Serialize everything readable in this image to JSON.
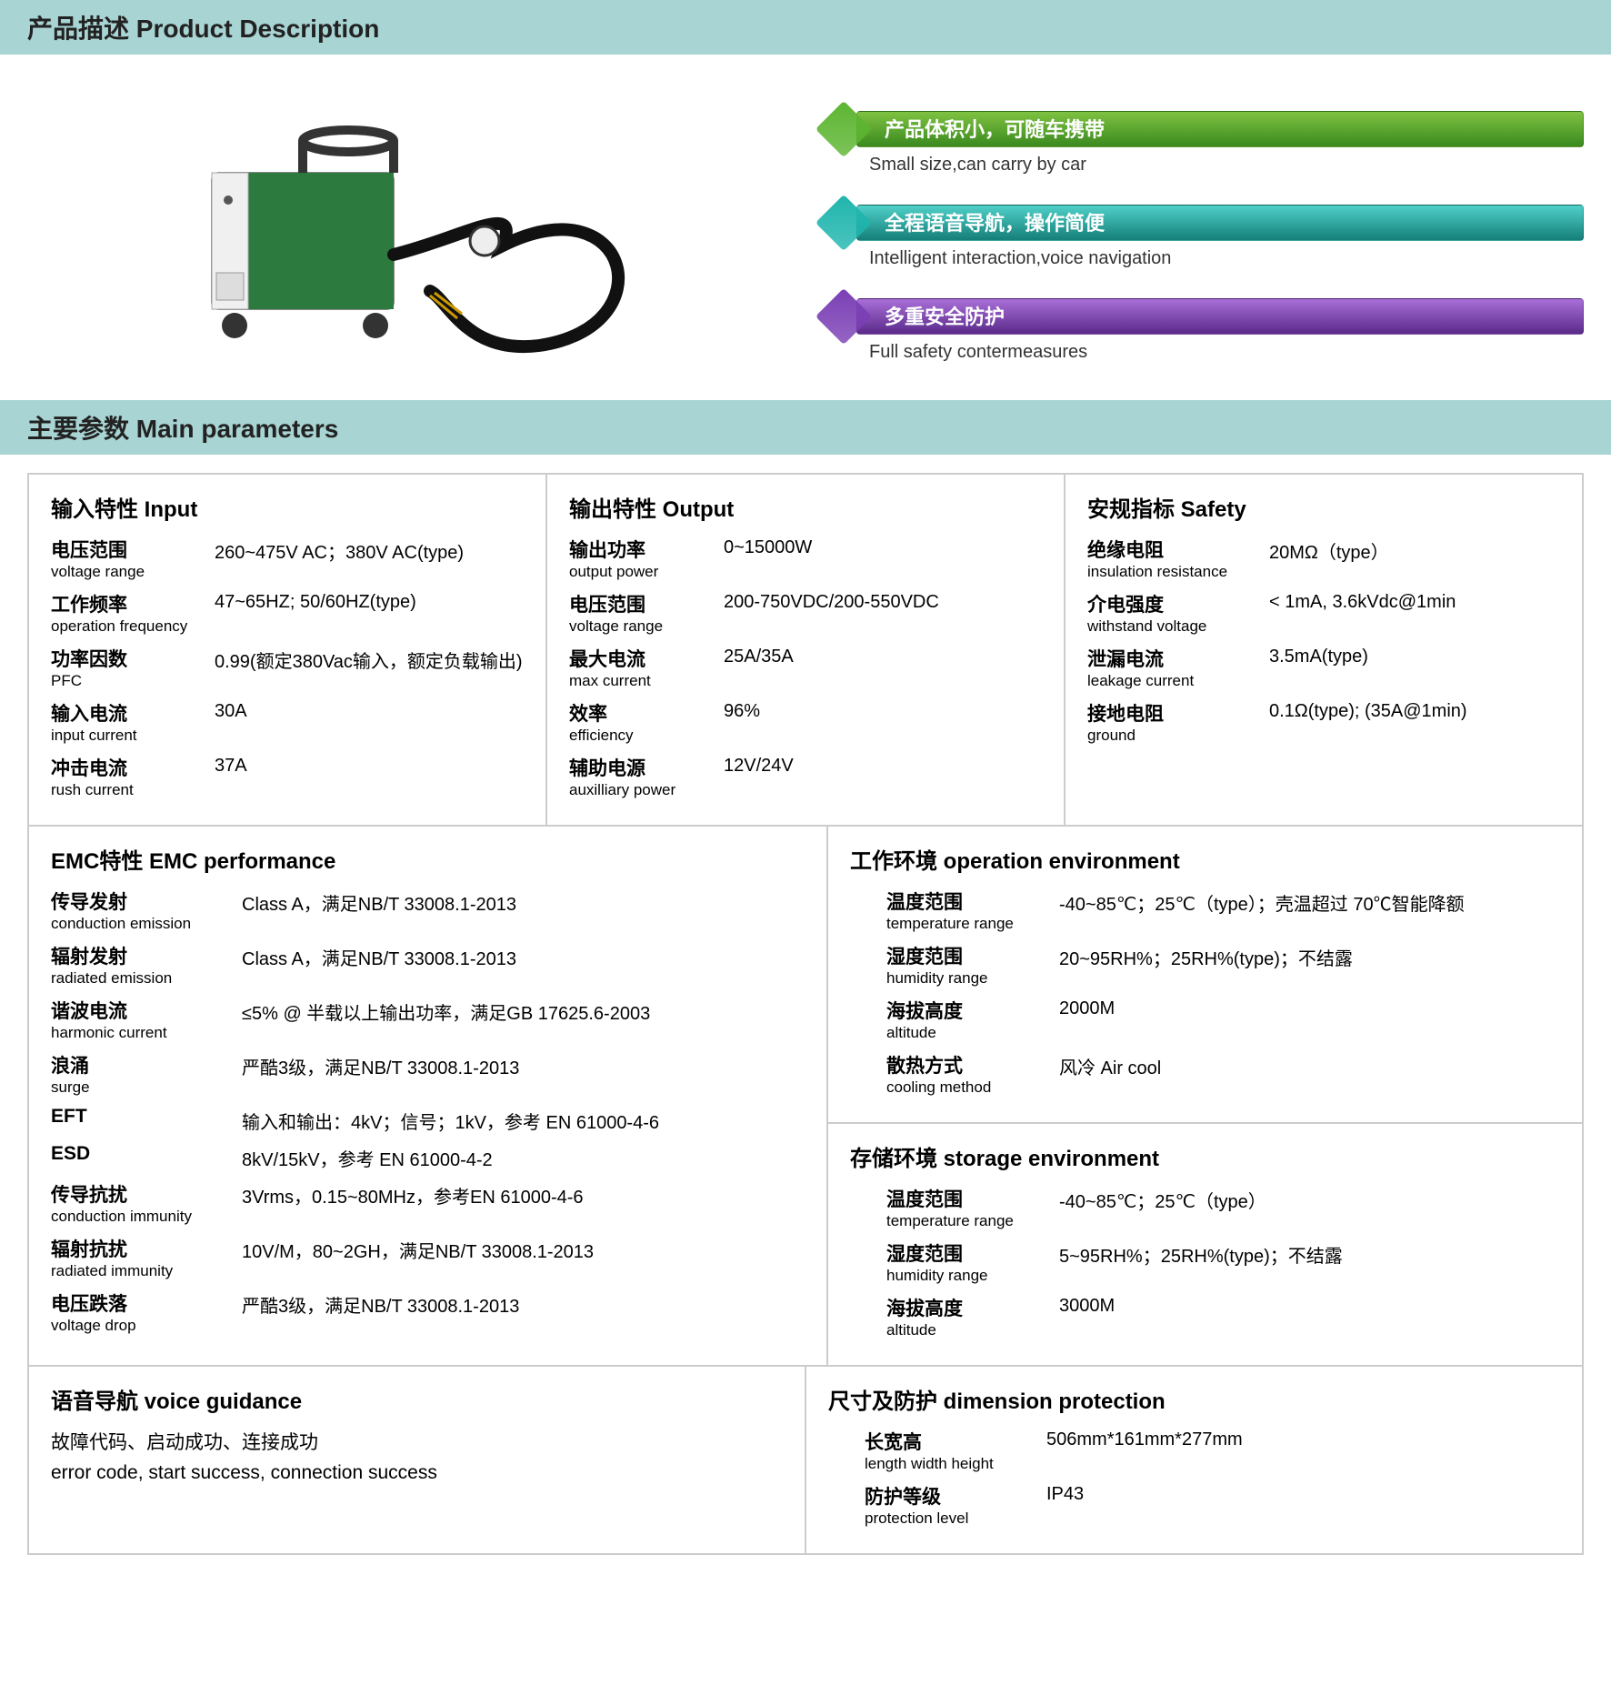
{
  "section1_title": "产品描述 Product Description",
  "features": [
    {
      "diamond_color": "#5cb531",
      "bar_gradient_from": "#7fc241",
      "bar_gradient_to": "#3a8a1f",
      "text_cn": "产品体积小，可随车携带",
      "text_en": "Small size,can carry by car"
    },
    {
      "diamond_color": "#1fb5ad",
      "bar_gradient_from": "#4fd0c8",
      "bar_gradient_to": "#157f79",
      "text_cn": "全程语音导航，操作简便",
      "text_en": "Intelligent interaction,voice navigation"
    },
    {
      "diamond_color": "#7b3fb5",
      "bar_gradient_from": "#a96fd8",
      "bar_gradient_to": "#5a2a8a",
      "text_cn": "多重安全防护",
      "text_en": "Full safety contermeasures"
    }
  ],
  "section2_title": "主要参数 Main parameters",
  "input": {
    "title": "输入特性  Input",
    "items": [
      {
        "cn": "电压范围",
        "en": "voltage range",
        "val": "260~475V AC；380V AC(type)"
      },
      {
        "cn": "工作频率",
        "en": "operation frequency",
        "val": "47~65HZ; 50/60HZ(type)"
      },
      {
        "cn": "功率因数",
        "en": "PFC",
        "val": "0.99(额定380Vac输入，额定负载输出)"
      },
      {
        "cn": "输入电流",
        "en": "input current",
        "val": "30A"
      },
      {
        "cn": "冲击电流",
        "en": "rush current",
        "val": "37A"
      }
    ]
  },
  "output": {
    "title": "输出特性  Output",
    "items": [
      {
        "cn": "输出功率",
        "en": "output power",
        "val": "0~15000W"
      },
      {
        "cn": "电压范围",
        "en": "voltage range",
        "val": "200-750VDC/200-550VDC"
      },
      {
        "cn": "最大电流",
        "en": "max current",
        "val": "25A/35A"
      },
      {
        "cn": "效率",
        "en": "efficiency",
        "val": "96%"
      },
      {
        "cn": "辅助电源",
        "en": "auxilliary power",
        "val": "12V/24V"
      }
    ]
  },
  "safety": {
    "title": "安规指标  Safety",
    "items": [
      {
        "cn": "绝缘电阻",
        "en": "insulation resistance",
        "val": "20MΩ（type）"
      },
      {
        "cn": "介电强度",
        "en": "withstand voltage",
        "val": "< 1mA, 3.6kVdc@1min"
      },
      {
        "cn": "泄漏电流",
        "en": "leakage current",
        "val": "3.5mA(type)"
      },
      {
        "cn": "接地电阻",
        "en": "ground",
        "val": "0.1Ω(type); (35A@1min)"
      }
    ]
  },
  "emc": {
    "title": "EMC特性  EMC performance",
    "items": [
      {
        "cn": "传导发射",
        "en": "conduction emission",
        "val": "Class A，满足NB/T 33008.1-2013"
      },
      {
        "cn": "辐射发射",
        "en": "radiated emission",
        "val": "Class A，满足NB/T 33008.1-2013"
      },
      {
        "cn": "谐波电流",
        "en": "harmonic current",
        "val": "≤5% @ 半载以上输出功率，满足GB 17625.6-2003"
      },
      {
        "cn": "浪涌",
        "en": "surge",
        "val": "严酷3级，满足NB/T 33008.1-2013"
      },
      {
        "cn": "EFT",
        "en": "",
        "val": "输入和输出：4kV；信号；1kV，参考 EN 61000-4-6"
      },
      {
        "cn": "ESD",
        "en": "",
        "val": "8kV/15kV，参考 EN 61000-4-2"
      },
      {
        "cn": "传导抗扰",
        "en": "conduction immunity",
        "val": "3Vrms，0.15~80MHz，参考EN 61000-4-6"
      },
      {
        "cn": "辐射抗扰",
        "en": "radiated immunity",
        "val": "10V/M，80~2GH，满足NB/T 33008.1-2013"
      },
      {
        "cn": "电压跌落",
        "en": "voltage drop",
        "val": "严酷3级，满足NB/T 33008.1-2013"
      }
    ]
  },
  "op_env": {
    "title": "工作环境 operation environment",
    "items": [
      {
        "cn": "温度范围",
        "en": "temperature range",
        "val": "-40~85℃；25℃（type）；壳温超过 70℃智能降额"
      },
      {
        "cn": "湿度范围",
        "en": "humidity range",
        "val": "20~95RH%；25RH%(type)；不结露"
      },
      {
        "cn": "海拔高度",
        "en": "altitude",
        "val": "2000M"
      },
      {
        "cn": "散热方式",
        "en": "cooling method",
        "val": "风冷 Air cool"
      }
    ]
  },
  "storage_env": {
    "title": "存储环境 storage environment",
    "items": [
      {
        "cn": "温度范围",
        "en": "temperature range",
        "val": "-40~85℃；25℃（type）"
      },
      {
        "cn": "湿度范围",
        "en": "humidity range",
        "val": "5~95RH%；25RH%(type)；不结露"
      },
      {
        "cn": "海拔高度",
        "en": "altitude",
        "val": "3000M"
      }
    ]
  },
  "voice": {
    "title": "语音导航 voice guidance",
    "line_cn": "故障代码、启动成功、连接成功",
    "line_en": "error code, start success, connection success"
  },
  "dimension": {
    "title": "尺寸及防护 dimension protection",
    "items": [
      {
        "cn": "长宽高",
        "en": "length width height",
        "val": "506mm*161mm*277mm"
      },
      {
        "cn": "防护等级",
        "en": "protection level",
        "val": "IP43"
      }
    ]
  }
}
